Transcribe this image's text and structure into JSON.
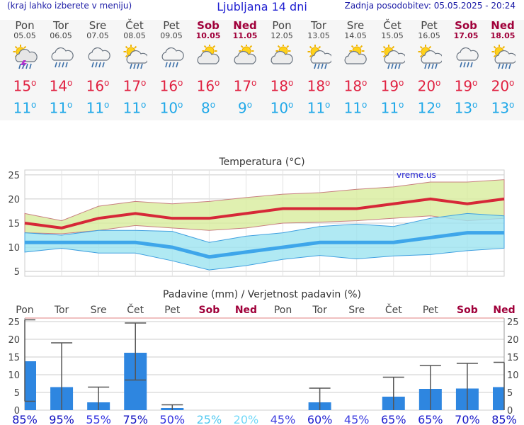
{
  "header": {
    "menu_hint": "(kraj lahko izberete v meniju)",
    "title": "Ljubljana 14 dni",
    "updated": "Zadnja posodobitev: 05.05.2025 - 20:24"
  },
  "days": [
    {
      "name": "Pon",
      "date": "05.05",
      "weekend": false,
      "icon": "thunderstorm-icon",
      "tmax": "15",
      "tmin": "11"
    },
    {
      "name": "Tor",
      "date": "06.05",
      "weekend": false,
      "icon": "rain-cloud-icon",
      "tmax": "14",
      "tmin": "11"
    },
    {
      "name": "Sre",
      "date": "07.05",
      "weekend": false,
      "icon": "rain-cloud-icon",
      "tmax": "16",
      "tmin": "11"
    },
    {
      "name": "Čet",
      "date": "08.05",
      "weekend": false,
      "icon": "sun-rain-cloud-icon",
      "tmax": "17",
      "tmin": "11"
    },
    {
      "name": "Pet",
      "date": "09.05",
      "weekend": false,
      "icon": "rain-cloud-icon",
      "tmax": "16",
      "tmin": "10"
    },
    {
      "name": "Sob",
      "date": "10.05",
      "weekend": true,
      "icon": "sun-cloud-icon",
      "tmax": "16",
      "tmin": "8"
    },
    {
      "name": "Ned",
      "date": "11.05",
      "weekend": true,
      "icon": "sun-cloud-icon",
      "tmax": "17",
      "tmin": "9"
    },
    {
      "name": "Pon",
      "date": "12.05",
      "weekend": false,
      "icon": "sun-cloud-icon",
      "tmax": "18",
      "tmin": "10"
    },
    {
      "name": "Tor",
      "date": "13.05",
      "weekend": false,
      "icon": "sun-rain-cloud-icon",
      "tmax": "18",
      "tmin": "11"
    },
    {
      "name": "Sre",
      "date": "14.05",
      "weekend": false,
      "icon": "sun-cloud-icon",
      "tmax": "18",
      "tmin": "11"
    },
    {
      "name": "Čet",
      "date": "15.05",
      "weekend": false,
      "icon": "sun-rain-cloud-icon",
      "tmax": "19",
      "tmin": "11"
    },
    {
      "name": "Pet",
      "date": "16.05",
      "weekend": false,
      "icon": "sun-rain-cloud-icon",
      "tmax": "20",
      "tmin": "12"
    },
    {
      "name": "Sob",
      "date": "17.05",
      "weekend": true,
      "icon": "rain-cloud-icon",
      "tmax": "19",
      "tmin": "13"
    },
    {
      "name": "Ned",
      "date": "18.05",
      "weekend": true,
      "icon": "sun-rain-cloud-icon",
      "tmax": "20",
      "tmin": "13"
    }
  ],
  "colors": {
    "tmax": "#e02040",
    "tmin": "#20a8e8",
    "weekend": "#a0003a",
    "max_band": "#d8ec9c",
    "min_band": "#9ce4f0",
    "max_line": "#d62838",
    "min_line": "#3ea6ea",
    "bar": "#2e86e0",
    "grid": "#cccccc"
  },
  "chart_data": [
    {
      "type": "line",
      "title": "Temperatura (°C)",
      "watermark": "vreme.us",
      "ylim": [
        4,
        26
      ],
      "yticks": [
        5,
        10,
        15,
        20,
        25
      ],
      "grid": true,
      "categories": [
        "05.05",
        "06.05",
        "07.05",
        "08.05",
        "09.05",
        "10.05",
        "11.05",
        "12.05",
        "13.05",
        "14.05",
        "15.05",
        "16.05",
        "17.05",
        "18.05"
      ],
      "series": [
        {
          "role": "max_mean",
          "values": [
            15,
            14,
            16,
            17,
            16,
            16,
            17,
            18,
            18,
            18,
            19,
            20,
            19,
            20
          ]
        },
        {
          "role": "max_upper",
          "values": [
            17,
            15.5,
            18.5,
            19.5,
            19,
            19.5,
            20.3,
            21,
            21.3,
            22,
            22.5,
            23.5,
            23.5,
            24
          ]
        },
        {
          "role": "max_lower",
          "values": [
            13,
            12.8,
            13.5,
            14.5,
            14,
            13.5,
            14,
            15,
            15.2,
            15.5,
            16,
            16.5,
            15.5,
            16
          ]
        },
        {
          "role": "min_mean",
          "values": [
            11,
            11,
            11,
            11,
            10,
            8,
            9,
            10,
            11,
            11,
            11,
            12,
            13,
            13
          ]
        },
        {
          "role": "min_upper",
          "values": [
            13,
            12.5,
            13.5,
            13.5,
            13.3,
            11,
            12.3,
            13,
            14.3,
            14.8,
            14.3,
            16,
            17,
            16.5
          ]
        },
        {
          "role": "min_lower",
          "values": [
            9,
            9.8,
            8.8,
            8.8,
            7.2,
            5.3,
            6.2,
            7.5,
            8.3,
            7.6,
            8.2,
            8.5,
            9.3,
            9.8
          ]
        }
      ]
    },
    {
      "type": "bar",
      "title": "Padavine (mm) / Verjetnost padavin (%)",
      "ylim": [
        0,
        26
      ],
      "yticks": [
        0,
        5,
        10,
        15,
        20,
        25
      ],
      "grid": true,
      "categories": [
        "Pon",
        "Tor",
        "Sre",
        "Čet",
        "Pet",
        "Sob",
        "Ned",
        "Pon",
        "Tor",
        "Sre",
        "Čet",
        "Pet",
        "Sob",
        "Ned"
      ],
      "weekend": [
        false,
        false,
        false,
        false,
        false,
        true,
        true,
        false,
        false,
        false,
        false,
        false,
        true,
        true
      ],
      "values": [
        13.8,
        6.5,
        2.2,
        16.2,
        0.6,
        0,
        0,
        0,
        2.2,
        0,
        3.8,
        6.0,
        6.1,
        6.5
      ],
      "error_low": [
        2.5,
        0,
        0,
        8.5,
        0,
        0,
        0,
        0,
        0,
        0,
        0,
        0,
        0,
        0
      ],
      "error_high": [
        25.5,
        19.0,
        6.5,
        24.6,
        1.5,
        0,
        0,
        0,
        6.2,
        0,
        9.3,
        12.6,
        13.2,
        13.5
      ],
      "probability": [
        "85%",
        "95%",
        "55%",
        "75%",
        "50%",
        "25%",
        "20%",
        "45%",
        "60%",
        "45%",
        "65%",
        "65%",
        "70%",
        "85%"
      ],
      "probability_colors": [
        "#1010c0",
        "#1010c0",
        "#3030e0",
        "#1010c0",
        "#3030e0",
        "#50c8f0",
        "#70d8f8",
        "#4040e0",
        "#2020d0",
        "#4040e0",
        "#2020d0",
        "#2020d0",
        "#1818c8",
        "#1010c0"
      ]
    }
  ]
}
